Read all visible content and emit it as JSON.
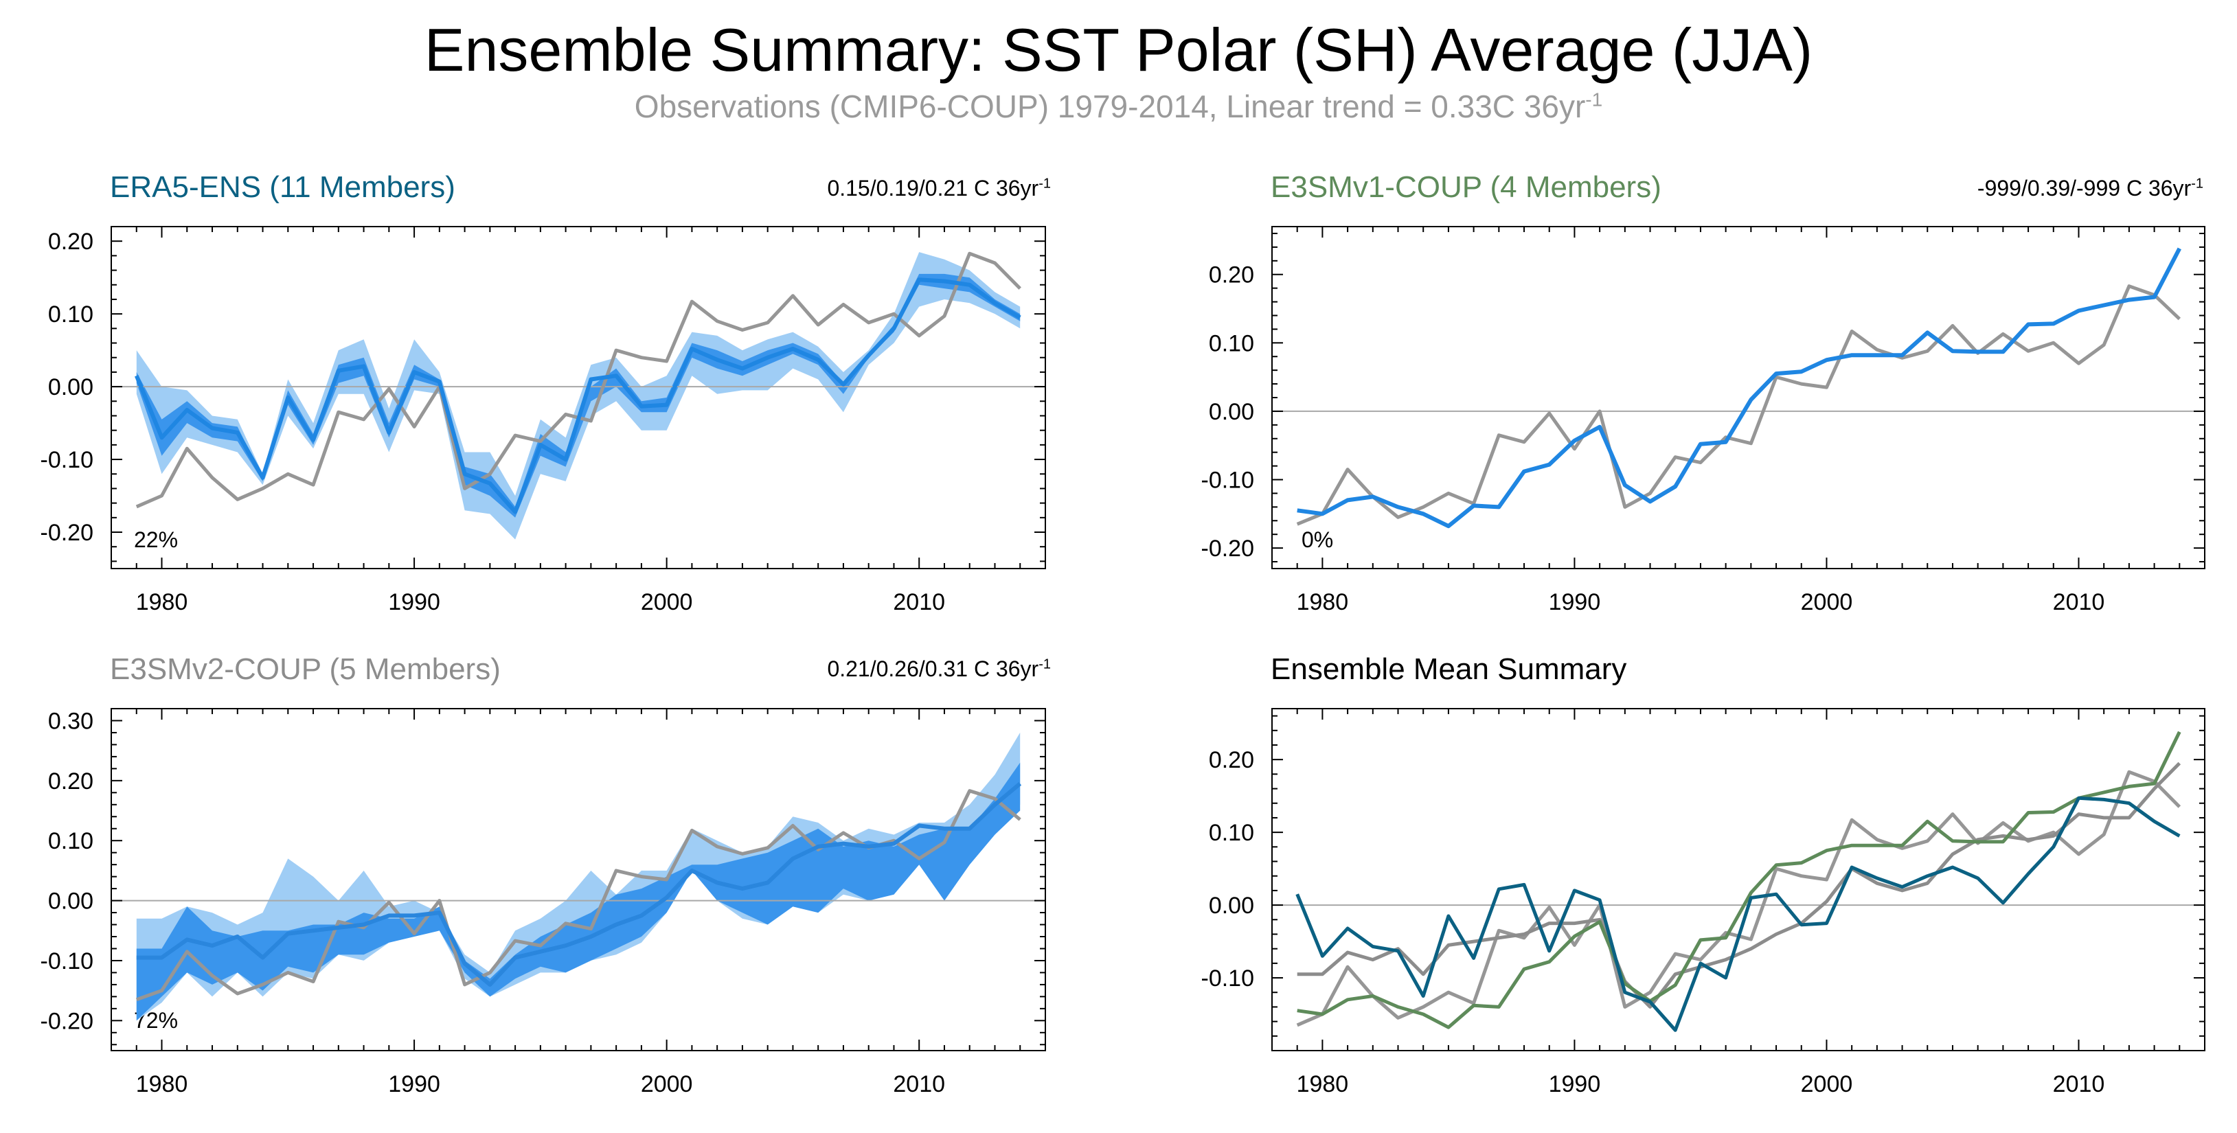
{
  "page": {
    "title": "Ensemble Summary: SST Polar (SH) Average (JJA)",
    "subtitle_main": "Observations (CMIP6-COUP) 1979-2014, Linear trend = 0.33C 36yr",
    "subtitle_sup": "-1"
  },
  "colors": {
    "obs": "#969696",
    "band_outer": "#9fcdf5",
    "band_inner": "#3a95ec",
    "mean_blue": "#1f86e2",
    "era5": "#0b6183",
    "e3smv1": "#5e8b5a",
    "e3smv2": "#8c8c8c",
    "zero_line": "#a8a8a8"
  },
  "chart_data": [
    {
      "type": "line",
      "panel": "ERA5-ENS",
      "title": "ERA5-ENS (11 Members)",
      "title_color": "#0b6183",
      "trend_text": "0.15/0.19/0.21 C 36yr",
      "trend_sup": "-1",
      "percent_label": "22%",
      "xlim": [
        1978,
        2015
      ],
      "ylim": [
        -0.25,
        0.22
      ],
      "yticks": [
        -0.2,
        -0.1,
        0.0,
        0.1,
        0.2
      ],
      "ytick_labels": [
        "-0.20",
        "-0.10",
        "0.00",
        "0.10",
        "0.20"
      ],
      "xticks": [
        1980,
        1990,
        2000,
        2010
      ],
      "xtick_labels": [
        "1980",
        "1990",
        "2000",
        "2010"
      ],
      "x": [
        1979,
        1980,
        1981,
        1982,
        1983,
        1984,
        1985,
        1986,
        1987,
        1988,
        1989,
        1990,
        1991,
        1992,
        1993,
        1994,
        1995,
        1996,
        1997,
        1998,
        1999,
        2000,
        2001,
        2002,
        2003,
        2004,
        2005,
        2006,
        2007,
        2008,
        2009,
        2010,
        2011,
        2012,
        2013,
        2014
      ],
      "observations": [
        {
          "name": "obs-1",
          "values": [
            -0.165,
            -0.15,
            -0.085,
            -0.125,
            -0.155,
            -0.14,
            -0.12,
            -0.135,
            -0.035,
            -0.045,
            -0.003,
            -0.055,
            0.0,
            -0.14,
            -0.12,
            -0.067,
            -0.075,
            -0.038,
            -0.047,
            0.05,
            0.04,
            0.035,
            0.117,
            0.09,
            0.078,
            0.088,
            0.125,
            0.085,
            0.113,
            0.088,
            0.1,
            0.07,
            0.097,
            0.183,
            0.17,
            0.135
          ]
        }
      ],
      "band_outer_upper": [
        0.05,
        0.0,
        -0.005,
        -0.04,
        -0.045,
        -0.12,
        0.01,
        -0.05,
        0.05,
        0.065,
        -0.03,
        0.065,
        0.02,
        -0.09,
        -0.09,
        -0.15,
        -0.045,
        -0.07,
        0.03,
        0.04,
        0.0,
        0.015,
        0.075,
        0.07,
        0.05,
        0.065,
        0.075,
        0.055,
        0.02,
        0.05,
        0.1,
        0.185,
        0.175,
        0.16,
        0.13,
        0.11
      ],
      "band_outer_lower": [
        -0.01,
        -0.12,
        -0.07,
        -0.08,
        -0.09,
        -0.135,
        -0.04,
        -0.085,
        -0.01,
        -0.01,
        -0.09,
        -0.005,
        -0.01,
        -0.17,
        -0.175,
        -0.21,
        -0.12,
        -0.13,
        -0.04,
        -0.02,
        -0.06,
        -0.06,
        0.015,
        -0.01,
        -0.005,
        -0.005,
        0.025,
        0.01,
        -0.035,
        0.03,
        0.06,
        0.11,
        0.12,
        0.115,
        0.1,
        0.08
      ],
      "band_inner_upper": [
        0.02,
        -0.045,
        -0.02,
        -0.05,
        -0.055,
        -0.125,
        -0.005,
        -0.065,
        0.03,
        0.04,
        -0.05,
        0.03,
        0.01,
        -0.11,
        -0.12,
        -0.165,
        -0.065,
        -0.09,
        0.0,
        0.025,
        -0.02,
        -0.015,
        0.06,
        0.05,
        0.035,
        0.05,
        0.06,
        0.045,
        0.005,
        0.045,
        0.085,
        0.155,
        0.155,
        0.15,
        0.12,
        0.1
      ],
      "band_inner_lower": [
        0.005,
        -0.095,
        -0.05,
        -0.07,
        -0.075,
        -0.13,
        -0.025,
        -0.08,
        0.005,
        0.015,
        -0.07,
        0.01,
        0.0,
        -0.135,
        -0.15,
        -0.18,
        -0.095,
        -0.11,
        -0.02,
        0.0,
        -0.035,
        -0.035,
        0.04,
        0.025,
        0.015,
        0.03,
        0.045,
        0.03,
        -0.01,
        0.04,
        0.075,
        0.14,
        0.135,
        0.13,
        0.11,
        0.09
      ],
      "ensemble_mean": [
        0.015,
        -0.07,
        -0.032,
        -0.057,
        -0.063,
        -0.125,
        -0.015,
        -0.073,
        0.022,
        0.028,
        -0.063,
        0.02,
        0.007,
        -0.12,
        -0.133,
        -0.172,
        -0.08,
        -0.1,
        0.01,
        0.015,
        -0.027,
        -0.025,
        0.052,
        0.037,
        0.025,
        0.04,
        0.052,
        0.037,
        0.003,
        0.043,
        0.08,
        0.147,
        0.145,
        0.14,
        0.115,
        0.095
      ]
    },
    {
      "type": "line",
      "panel": "E3SMv1-COUP",
      "title": "E3SMv1-COUP (4 Members)",
      "title_color": "#5e8b5a",
      "trend_text": "-999/0.39/-999 C 36yr",
      "trend_sup": "-1",
      "percent_label": "0%",
      "xlim": [
        1978,
        2015
      ],
      "ylim": [
        -0.23,
        0.27
      ],
      "yticks": [
        -0.2,
        -0.1,
        0.0,
        0.1,
        0.2
      ],
      "ytick_labels": [
        "-0.20",
        "-0.10",
        "0.00",
        "0.10",
        "0.20"
      ],
      "xticks": [
        1980,
        1990,
        2000,
        2010
      ],
      "xtick_labels": [
        "1980",
        "1990",
        "2000",
        "2010"
      ],
      "x": [
        1979,
        1980,
        1981,
        1982,
        1983,
        1984,
        1985,
        1986,
        1987,
        1988,
        1989,
        1990,
        1991,
        1992,
        1993,
        1994,
        1995,
        1996,
        1997,
        1998,
        1999,
        2000,
        2001,
        2002,
        2003,
        2004,
        2005,
        2006,
        2007,
        2008,
        2009,
        2010,
        2011,
        2012,
        2013,
        2014
      ],
      "observations": [
        {
          "name": "obs-1",
          "values": [
            -0.165,
            -0.15,
            -0.085,
            -0.125,
            -0.155,
            -0.14,
            -0.12,
            -0.135,
            -0.035,
            -0.045,
            -0.003,
            -0.055,
            0.0,
            -0.14,
            -0.12,
            -0.067,
            -0.075,
            -0.038,
            -0.047,
            0.05,
            0.04,
            0.035,
            0.117,
            0.09,
            0.078,
            0.088,
            0.125,
            0.085,
            0.113,
            0.088,
            0.1,
            0.07,
            0.097,
            0.183,
            0.17,
            0.135
          ]
        }
      ],
      "ensemble_mean": [
        -0.145,
        -0.15,
        -0.13,
        -0.125,
        -0.14,
        -0.15,
        -0.168,
        -0.138,
        -0.14,
        -0.088,
        -0.078,
        -0.043,
        -0.023,
        -0.108,
        -0.132,
        -0.11,
        -0.048,
        -0.045,
        0.017,
        0.055,
        0.058,
        0.075,
        0.082,
        0.082,
        0.082,
        0.115,
        0.088,
        0.087,
        0.087,
        0.127,
        0.128,
        0.147,
        0.155,
        0.163,
        0.167,
        0.238
      ]
    },
    {
      "type": "line",
      "panel": "E3SMv2-COUP",
      "title": "E3SMv2-COUP (5 Members)",
      "title_color": "#8c8c8c",
      "trend_text": "0.21/0.26/0.31 C 36yr",
      "trend_sup": "-1",
      "percent_label": "72%",
      "xlim": [
        1978,
        2015
      ],
      "ylim": [
        -0.25,
        0.32
      ],
      "yticks": [
        -0.2,
        -0.1,
        0.0,
        0.1,
        0.2,
        0.3
      ],
      "ytick_labels": [
        "-0.20",
        "-0.10",
        "0.00",
        "0.10",
        "0.20",
        "0.30"
      ],
      "xticks": [
        1980,
        1990,
        2000,
        2010
      ],
      "xtick_labels": [
        "1980",
        "1990",
        "2000",
        "2010"
      ],
      "x": [
        1979,
        1980,
        1981,
        1982,
        1983,
        1984,
        1985,
        1986,
        1987,
        1988,
        1989,
        1990,
        1991,
        1992,
        1993,
        1994,
        1995,
        1996,
        1997,
        1998,
        1999,
        2000,
        2001,
        2002,
        2003,
        2004,
        2005,
        2006,
        2007,
        2008,
        2009,
        2010,
        2011,
        2012,
        2013,
        2014
      ],
      "observations": [
        {
          "name": "obs-1",
          "values": [
            -0.165,
            -0.15,
            -0.085,
            -0.125,
            -0.155,
            -0.14,
            -0.12,
            -0.135,
            -0.035,
            -0.045,
            -0.003,
            -0.055,
            0.0,
            -0.14,
            -0.12,
            -0.067,
            -0.075,
            -0.038,
            -0.047,
            0.05,
            0.04,
            0.035,
            0.117,
            0.09,
            0.078,
            0.088,
            0.125,
            0.085,
            0.113,
            0.088,
            0.1,
            0.07,
            0.097,
            0.183,
            0.17,
            0.135
          ]
        }
      ],
      "band_outer_upper": [
        -0.03,
        -0.03,
        -0.01,
        -0.02,
        -0.04,
        -0.02,
        0.07,
        0.04,
        0.0,
        0.05,
        -0.01,
        0.0,
        -0.02,
        -0.09,
        -0.12,
        -0.05,
        -0.03,
        0.0,
        0.05,
        0.01,
        0.05,
        0.05,
        0.12,
        0.1,
        0.08,
        0.09,
        0.14,
        0.13,
        0.1,
        0.12,
        0.11,
        0.13,
        0.13,
        0.16,
        0.21,
        0.28
      ],
      "band_outer_lower": [
        -0.2,
        -0.17,
        -0.12,
        -0.16,
        -0.12,
        -0.16,
        -0.12,
        -0.13,
        -0.09,
        -0.1,
        -0.07,
        -0.06,
        -0.05,
        -0.13,
        -0.16,
        -0.14,
        -0.12,
        -0.12,
        -0.1,
        -0.09,
        -0.07,
        -0.02,
        0.05,
        0.0,
        -0.03,
        -0.04,
        -0.01,
        -0.02,
        0.01,
        0.0,
        0.02,
        0.06,
        0.0,
        0.06,
        0.11,
        0.16
      ],
      "band_inner_upper": [
        -0.08,
        -0.08,
        -0.01,
        -0.05,
        -0.06,
        -0.05,
        -0.05,
        -0.04,
        -0.04,
        -0.02,
        -0.03,
        -0.03,
        -0.01,
        -0.1,
        -0.13,
        -0.09,
        -0.06,
        -0.04,
        -0.02,
        0.01,
        0.02,
        0.04,
        0.06,
        0.06,
        0.07,
        0.08,
        0.1,
        0.12,
        0.09,
        0.1,
        0.09,
        0.11,
        0.12,
        0.12,
        0.17,
        0.23
      ],
      "band_inner_lower": [
        -0.2,
        -0.16,
        -0.12,
        -0.14,
        -0.12,
        -0.15,
        -0.11,
        -0.12,
        -0.09,
        -0.09,
        -0.07,
        -0.06,
        -0.05,
        -0.12,
        -0.16,
        -0.13,
        -0.11,
        -0.12,
        -0.1,
        -0.08,
        -0.06,
        -0.02,
        0.05,
        0.0,
        -0.02,
        -0.04,
        -0.01,
        -0.02,
        0.02,
        0.0,
        0.01,
        0.06,
        0.0,
        0.06,
        0.11,
        0.15
      ],
      "ensemble_mean": [
        -0.095,
        -0.095,
        -0.065,
        -0.075,
        -0.06,
        -0.095,
        -0.055,
        -0.05,
        -0.045,
        -0.04,
        -0.025,
        -0.025,
        -0.02,
        -0.105,
        -0.14,
        -0.095,
        -0.085,
        -0.075,
        -0.06,
        -0.04,
        -0.025,
        0.005,
        0.05,
        0.03,
        0.02,
        0.03,
        0.07,
        0.09,
        0.095,
        0.09,
        0.095,
        0.125,
        0.12,
        0.12,
        0.16,
        0.195
      ]
    },
    {
      "type": "line",
      "panel": "Ensemble Mean Summary",
      "title": "Ensemble Mean Summary",
      "title_color": "#000000",
      "xlim": [
        1978,
        2015
      ],
      "ylim": [
        -0.2,
        0.27
      ],
      "yticks": [
        -0.1,
        0.0,
        0.1,
        0.2
      ],
      "ytick_labels": [
        "-0.10",
        "0.00",
        "0.10",
        "0.20"
      ],
      "xticks": [
        1980,
        1990,
        2000,
        2010
      ],
      "xtick_labels": [
        "1980",
        "1990",
        "2000",
        "2010"
      ],
      "x": [
        1979,
        1980,
        1981,
        1982,
        1983,
        1984,
        1985,
        1986,
        1987,
        1988,
        1989,
        1990,
        1991,
        1992,
        1993,
        1994,
        1995,
        1996,
        1997,
        1998,
        1999,
        2000,
        2001,
        2002,
        2003,
        2004,
        2005,
        2006,
        2007,
        2008,
        2009,
        2010,
        2011,
        2012,
        2013,
        2014
      ],
      "observations": [
        {
          "name": "obs-1",
          "values": [
            -0.165,
            -0.15,
            -0.085,
            -0.125,
            -0.155,
            -0.14,
            -0.12,
            -0.135,
            -0.035,
            -0.045,
            -0.003,
            -0.055,
            0.0,
            -0.14,
            -0.12,
            -0.067,
            -0.075,
            -0.038,
            -0.047,
            0.05,
            0.04,
            0.035,
            0.117,
            0.09,
            0.078,
            0.088,
            0.125,
            0.085,
            0.113,
            0.088,
            0.1,
            0.07,
            0.097,
            0.183,
            0.17,
            0.135
          ]
        }
      ],
      "series": [
        {
          "name": "E3SMv2-COUP",
          "color": "#8c8c8c",
          "values": [
            -0.095,
            -0.095,
            -0.065,
            -0.075,
            -0.06,
            -0.095,
            -0.055,
            -0.05,
            -0.045,
            -0.04,
            -0.025,
            -0.025,
            -0.02,
            -0.105,
            -0.14,
            -0.095,
            -0.085,
            -0.075,
            -0.06,
            -0.04,
            -0.025,
            0.005,
            0.05,
            0.03,
            0.02,
            0.03,
            0.07,
            0.09,
            0.095,
            0.09,
            0.095,
            0.125,
            0.12,
            0.12,
            0.16,
            0.195
          ]
        },
        {
          "name": "E3SMv1-COUP",
          "color": "#5e8b5a",
          "values": [
            -0.145,
            -0.15,
            -0.13,
            -0.125,
            -0.14,
            -0.15,
            -0.168,
            -0.138,
            -0.14,
            -0.088,
            -0.078,
            -0.043,
            -0.023,
            -0.108,
            -0.132,
            -0.11,
            -0.048,
            -0.045,
            0.017,
            0.055,
            0.058,
            0.075,
            0.082,
            0.082,
            0.082,
            0.115,
            0.088,
            0.087,
            0.087,
            0.127,
            0.128,
            0.147,
            0.155,
            0.163,
            0.167,
            0.238
          ]
        },
        {
          "name": "ERA5-ENS",
          "color": "#0b6183",
          "values": [
            0.015,
            -0.07,
            -0.032,
            -0.057,
            -0.063,
            -0.125,
            -0.015,
            -0.073,
            0.022,
            0.028,
            -0.063,
            0.02,
            0.007,
            -0.12,
            -0.133,
            -0.172,
            -0.08,
            -0.1,
            0.01,
            0.015,
            -0.027,
            -0.025,
            0.052,
            0.037,
            0.025,
            0.04,
            0.052,
            0.037,
            0.003,
            0.043,
            0.08,
            0.147,
            0.145,
            0.14,
            0.115,
            0.095
          ]
        }
      ]
    }
  ]
}
